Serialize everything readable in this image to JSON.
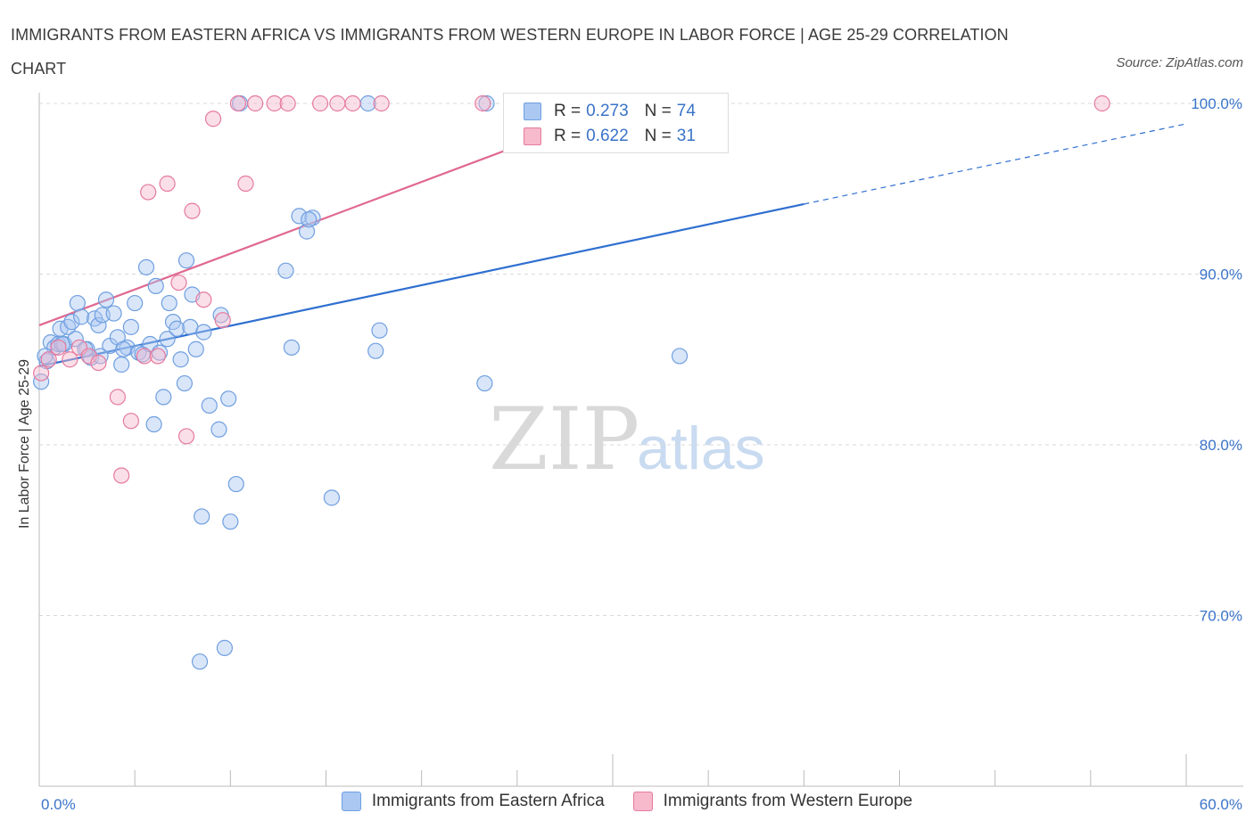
{
  "title": "IMMIGRANTS FROM EASTERN AFRICA VS IMMIGRANTS FROM WESTERN EUROPE IN LABOR FORCE | AGE 25-29 CORRELATION CHART",
  "source": "Source: ZipAtlas.com",
  "watermark": {
    "zip": "ZIP",
    "atlas": "atlas"
  },
  "legend": {
    "rows": [
      {
        "r_label": "R =",
        "r_value": "0.273",
        "n_label": "N =",
        "n_value": "74",
        "color": "#aac8f2"
      },
      {
        "r_label": "R =",
        "r_value": "0.622",
        "n_label": "N =",
        "n_value": "31",
        "color": "#f7b9cc"
      }
    ]
  },
  "bottom_legend": [
    {
      "label": "Immigrants from Eastern Africa",
      "color": "#aac8f2"
    },
    {
      "label": "Immigrants from Western Europe",
      "color": "#f7b9cc"
    }
  ],
  "chart_data": {
    "type": "scatter",
    "title": "IMMIGRANTS FROM EASTERN AFRICA VS IMMIGRANTS FROM WESTERN EUROPE IN LABOR FORCE | AGE 25-29 CORRELATION CHART",
    "xlabel": "",
    "ylabel": "In Labor Force | Age 25-29",
    "xlim": [
      0,
      60
    ],
    "ylim": [
      60,
      100
    ],
    "x_tick_labels": [
      "0.0%",
      "60.0%"
    ],
    "y_ticks": [
      70,
      80,
      90,
      100
    ],
    "y_tick_labels": [
      "70.0%",
      "80.0%",
      "90.0%",
      "100.0%"
    ],
    "grid": true,
    "legend_position": "top-center",
    "series": [
      {
        "name": "Immigrants from Eastern Africa",
        "color": "#6f9fe0",
        "fill": "#aac8f2",
        "trend": {
          "x": [
            0,
            40,
            60
          ],
          "y": [
            84.6,
            94.1,
            98.8
          ],
          "solid_until": 40
        },
        "points": [
          [
            0.1,
            83.7
          ],
          [
            0.4,
            84.9
          ],
          [
            0.6,
            86.0
          ],
          [
            0.8,
            85.7
          ],
          [
            1.0,
            85.9
          ],
          [
            1.1,
            86.8
          ],
          [
            1.3,
            85.9
          ],
          [
            1.5,
            86.9
          ],
          [
            1.7,
            87.2
          ],
          [
            1.9,
            86.2
          ],
          [
            2.0,
            88.3
          ],
          [
            2.2,
            87.5
          ],
          [
            2.5,
            85.6
          ],
          [
            2.7,
            85.1
          ],
          [
            2.9,
            87.4
          ],
          [
            3.1,
            87.0
          ],
          [
            3.3,
            87.6
          ],
          [
            3.5,
            88.5
          ],
          [
            3.7,
            85.8
          ],
          [
            3.9,
            87.7
          ],
          [
            4.1,
            86.3
          ],
          [
            4.3,
            84.7
          ],
          [
            4.6,
            85.7
          ],
          [
            4.8,
            86.9
          ],
          [
            5.0,
            88.3
          ],
          [
            5.2,
            85.4
          ],
          [
            5.4,
            85.3
          ],
          [
            5.6,
            90.4
          ],
          [
            5.8,
            85.9
          ],
          [
            6.0,
            81.2
          ],
          [
            6.1,
            89.3
          ],
          [
            6.5,
            82.8
          ],
          [
            6.7,
            86.2
          ],
          [
            6.8,
            88.3
          ],
          [
            7.0,
            87.2
          ],
          [
            7.2,
            86.8
          ],
          [
            7.4,
            85.0
          ],
          [
            7.6,
            83.6
          ],
          [
            7.7,
            90.8
          ],
          [
            7.9,
            86.9
          ],
          [
            8.0,
            88.8
          ],
          [
            8.2,
            85.6
          ],
          [
            8.4,
            67.3
          ],
          [
            8.6,
            86.6
          ],
          [
            8.9,
            82.3
          ],
          [
            8.5,
            75.8
          ],
          [
            9.4,
            80.9
          ],
          [
            9.5,
            87.6
          ],
          [
            9.7,
            68.1
          ],
          [
            9.9,
            82.7
          ],
          [
            10.0,
            75.5
          ],
          [
            10.3,
            77.7
          ],
          [
            10.5,
            100.0
          ],
          [
            12.9,
            90.2
          ],
          [
            13.2,
            85.7
          ],
          [
            13.6,
            93.4
          ],
          [
            14.0,
            92.5
          ],
          [
            14.3,
            93.3
          ],
          [
            15.3,
            76.9
          ],
          [
            17.2,
            100.0
          ],
          [
            17.6,
            85.5
          ],
          [
            17.8,
            86.7
          ],
          [
            23.3,
            83.6
          ],
          [
            23.4,
            100.0
          ],
          [
            24.8,
            100.0
          ],
          [
            25.0,
            100.0
          ],
          [
            33.5,
            85.2
          ],
          [
            0.3,
            85.2
          ],
          [
            1.2,
            85.9
          ],
          [
            2.4,
            85.6
          ],
          [
            3.2,
            85.2
          ],
          [
            4.4,
            85.6
          ],
          [
            6.3,
            85.4
          ],
          [
            14.1,
            93.2
          ]
        ]
      },
      {
        "name": "Immigrants from Western Europe",
        "color": "#e57a9e",
        "fill": "#f7b9cc",
        "trend": {
          "x": [
            0,
            30
          ],
          "y": [
            87.0,
            99.6
          ]
        },
        "points": [
          [
            0.1,
            84.2
          ],
          [
            0.5,
            85.0
          ],
          [
            1.0,
            85.7
          ],
          [
            1.6,
            85.0
          ],
          [
            2.1,
            85.7
          ],
          [
            2.6,
            85.2
          ],
          [
            3.1,
            84.8
          ],
          [
            4.1,
            82.8
          ],
          [
            4.3,
            78.2
          ],
          [
            4.8,
            81.4
          ],
          [
            5.5,
            85.2
          ],
          [
            5.7,
            94.8
          ],
          [
            6.2,
            85.2
          ],
          [
            6.7,
            95.3
          ],
          [
            7.3,
            89.5
          ],
          [
            7.7,
            80.5
          ],
          [
            8.0,
            93.7
          ],
          [
            8.6,
            88.5
          ],
          [
            9.1,
            99.1
          ],
          [
            9.6,
            87.3
          ],
          [
            10.4,
            100.0
          ],
          [
            10.8,
            95.3
          ],
          [
            11.3,
            100.0
          ],
          [
            12.3,
            100.0
          ],
          [
            13.0,
            100.0
          ],
          [
            14.7,
            100.0
          ],
          [
            15.6,
            100.0
          ],
          [
            16.4,
            100.0
          ],
          [
            17.9,
            100.0
          ],
          [
            23.2,
            100.0
          ],
          [
            55.6,
            100.0
          ]
        ]
      }
    ]
  }
}
